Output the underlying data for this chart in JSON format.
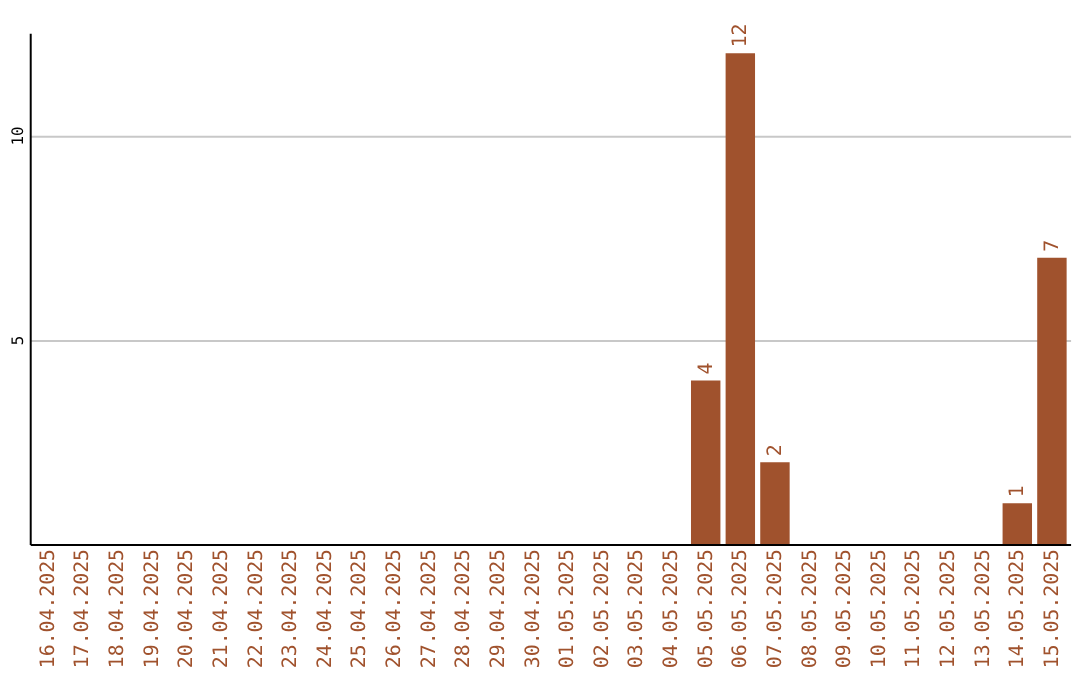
{
  "chart_data": {
    "type": "bar",
    "categories": [
      "16.04.2025",
      "17.04.2025",
      "18.04.2025",
      "19.04.2025",
      "20.04.2025",
      "21.04.2025",
      "22.04.2025",
      "23.04.2025",
      "24.04.2025",
      "25.04.2025",
      "26.04.2025",
      "27.04.2025",
      "28.04.2025",
      "29.04.2025",
      "30.04.2025",
      "01.05.2025",
      "02.05.2025",
      "03.05.2025",
      "04.05.2025",
      "05.05.2025",
      "06.05.2025",
      "07.05.2025",
      "08.05.2025",
      "09.05.2025",
      "10.05.2025",
      "11.05.2025",
      "12.05.2025",
      "13.05.2025",
      "14.05.2025",
      "15.05.2025"
    ],
    "values": [
      null,
      null,
      null,
      null,
      null,
      null,
      null,
      null,
      null,
      null,
      null,
      null,
      null,
      null,
      null,
      null,
      null,
      null,
      null,
      4,
      12,
      2,
      null,
      null,
      null,
      null,
      null,
      null,
      1,
      7
    ],
    "color": "#a0522d",
    "ylim": [
      0,
      12.5
    ],
    "yticks": [
      5,
      10
    ],
    "grid": "y",
    "data_labels": true
  }
}
